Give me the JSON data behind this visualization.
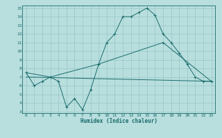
{
  "xlabel": "Humidex (Indice chaleur)",
  "ylabel": "",
  "xlim": [
    -0.5,
    23.5
  ],
  "ylim": [
    2.8,
    15.3
  ],
  "yticks": [
    3,
    4,
    5,
    6,
    7,
    8,
    9,
    10,
    11,
    12,
    13,
    14,
    15
  ],
  "xticks": [
    0,
    1,
    2,
    3,
    4,
    5,
    6,
    7,
    8,
    9,
    10,
    11,
    12,
    13,
    14,
    15,
    16,
    17,
    18,
    19,
    20,
    21,
    22,
    23
  ],
  "bg_color": "#b8dede",
  "grid_color": "#90c0c0",
  "line_color": "#1a6b6b",
  "line1_x": [
    0,
    1,
    2,
    3,
    4,
    5,
    6,
    7,
    8,
    9,
    10,
    11,
    12,
    13,
    14,
    15,
    16,
    17,
    18,
    19,
    20,
    21,
    22,
    23
  ],
  "line1_y": [
    7.5,
    6.0,
    6.5,
    7.0,
    6.5,
    3.5,
    4.5,
    3.2,
    5.5,
    8.5,
    11.0,
    12.0,
    14.0,
    14.0,
    14.5,
    15.0,
    14.2,
    12.0,
    11.0,
    9.8,
    8.5,
    7.0,
    6.5,
    6.5
  ],
  "line2_x": [
    0,
    3,
    9,
    17,
    23
  ],
  "line2_y": [
    7.5,
    7.0,
    8.5,
    11.0,
    6.5
  ],
  "line3_x": [
    0,
    23
  ],
  "line3_y": [
    7.0,
    6.5
  ]
}
